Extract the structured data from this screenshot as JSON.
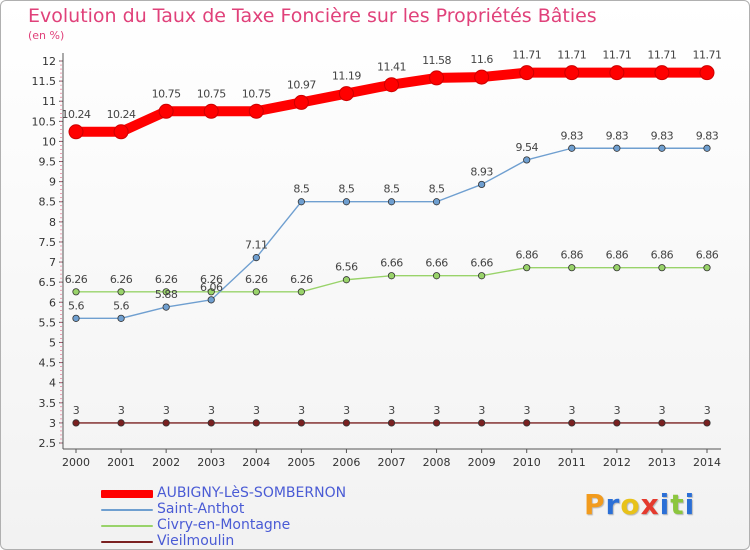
{
  "title": "Evolution du Taux de Taxe Foncière sur les Propriétés Bâties",
  "unit_label": "(en %)",
  "brand": {
    "letters": [
      "P",
      "r",
      "o",
      "x",
      "i",
      "t",
      "i"
    ],
    "colors": [
      "#f29b1d",
      "#2b6fd6",
      "#e8c21a",
      "#e53a2e",
      "#2b6fd6",
      "#8cc63f",
      "#2b6fd6"
    ]
  },
  "chart_data": {
    "type": "line",
    "x": [
      2000,
      2001,
      2002,
      2003,
      2004,
      2005,
      2006,
      2007,
      2008,
      2009,
      2010,
      2011,
      2012,
      2013,
      2014
    ],
    "xlabels": [
      "2000",
      "2001",
      "2002",
      "2003",
      "2004",
      "2005",
      "2006",
      "2007",
      "2008",
      "2009",
      "2010",
      "2011",
      "2012",
      "2013",
      "2014"
    ],
    "ylim": [
      2.5,
      12
    ],
    "yticks": [
      "2.5",
      "3",
      "3.5",
      "4",
      "4.5",
      "5",
      "5.5",
      "6",
      "6.5",
      "7",
      "7.5",
      "8",
      "8.5",
      "9",
      "9.5",
      "10",
      "10.5",
      "11",
      "11.5",
      "12"
    ],
    "grid": false,
    "legend": "bottom-left",
    "series": [
      {
        "name": "AUBIGNY-LèS-SOMBERNON",
        "color": "#ff0000",
        "values": [
          10.24,
          10.24,
          10.75,
          10.75,
          10.75,
          10.97,
          11.19,
          11.41,
          11.58,
          11.6,
          11.71,
          11.71,
          11.71,
          11.71,
          11.71
        ],
        "labels": [
          "10.24",
          "10.24",
          "10.75",
          "10.75",
          "10.75",
          "10.97",
          "11.19",
          "11.41",
          "11.58",
          "11.6",
          "11.71",
          "11.71",
          "11.71",
          "11.71",
          "11.71"
        ]
      },
      {
        "name": "Saint-Anthot",
        "color": "#6f9fd0",
        "values": [
          5.6,
          5.6,
          5.88,
          6.06,
          7.11,
          8.5,
          8.5,
          8.5,
          8.5,
          8.93,
          9.54,
          9.83,
          9.83,
          9.83,
          9.83
        ],
        "labels": [
          "5.6",
          "5.6",
          "5.88",
          "6.06",
          "7.11",
          "8.5",
          "8.5",
          "8.5",
          "8.5",
          "8.93",
          "9.54",
          "9.83",
          "9.83",
          "9.83",
          "9.83"
        ]
      },
      {
        "name": "Civry-en-Montagne",
        "color": "#99d36a",
        "values": [
          6.26,
          6.26,
          6.26,
          6.26,
          6.26,
          6.26,
          6.56,
          6.66,
          6.66,
          6.66,
          6.86,
          6.86,
          6.86,
          6.86,
          6.86
        ],
        "labels": [
          "6.26",
          "6.26",
          "6.26",
          "6.26",
          "6.26",
          "6.26",
          "6.56",
          "6.66",
          "6.66",
          "6.66",
          "6.86",
          "6.86",
          "6.86",
          "6.86",
          "6.86"
        ]
      },
      {
        "name": "Vieilmoulin",
        "color": "#7a2020",
        "values": [
          3,
          3,
          3,
          3,
          3,
          3,
          3,
          3,
          3,
          3,
          3,
          3,
          3,
          3,
          3
        ],
        "labels": [
          "3",
          "3",
          "3",
          "3",
          "3",
          "3",
          "3",
          "3",
          "3",
          "3",
          "3",
          "3",
          "3",
          "3",
          "3"
        ]
      }
    ]
  }
}
